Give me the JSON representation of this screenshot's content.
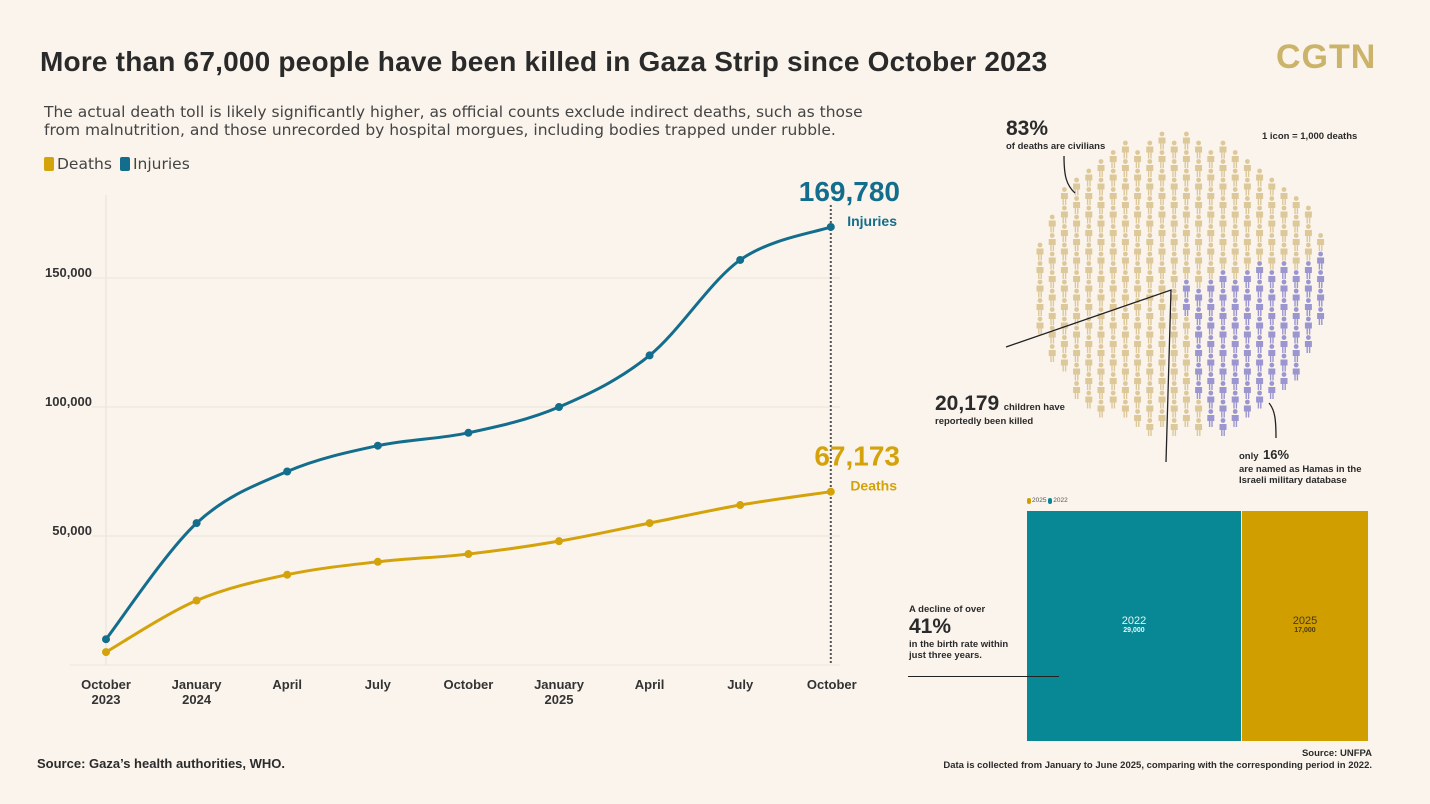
{
  "title": "More than 67,000 people have been killed in Gaza Strip since October 2023",
  "logo": "CGTN",
  "subtitle": "The actual death toll is likely significantly higher, as official counts exclude indirect deaths, such as those from malnutrition, and those unrecorded by hospital morgues, including bodies trapped under rubble.",
  "source": "Source: Gaza’s health authorities, WHO.",
  "colors": {
    "deaths": "#d4a20a",
    "injuries": "#136d8c",
    "civilians": "#ddc89a",
    "hamas": "#9b96d0",
    "teal": "#078894",
    "gold": "#d19e00"
  },
  "chart_data": [
    {
      "type": "line",
      "legend": [
        "Deaths",
        "Injuries"
      ],
      "categories": [
        "October 2023",
        "January 2024",
        "April",
        "July",
        "October",
        "January 2025",
        "April",
        "July",
        "October"
      ],
      "tick_labels": [
        [
          "October",
          "2023"
        ],
        [
          "January",
          "2024"
        ],
        [
          "April",
          ""
        ],
        [
          "July",
          ""
        ],
        [
          "October",
          ""
        ],
        [
          "January",
          "2025"
        ],
        [
          "April",
          ""
        ],
        [
          "July",
          ""
        ],
        [
          "October",
          ""
        ]
      ],
      "yticks": [
        {
          "v": 50000,
          "label": "50,000"
        },
        {
          "v": 100000,
          "label": "100,000"
        },
        {
          "v": 150000,
          "label": "150,000"
        }
      ],
      "ylim": [
        0,
        180000
      ],
      "series": [
        {
          "name": "Injuries",
          "values": [
            10000,
            55000,
            75000,
            85000,
            90000,
            100000,
            120000,
            157000,
            169780
          ],
          "end_label": "169,780"
        },
        {
          "name": "Deaths",
          "values": [
            5000,
            25000,
            35000,
            40000,
            43000,
            48000,
            55000,
            62000,
            67173
          ],
          "end_label": "67,173"
        }
      ]
    },
    {
      "type": "bar",
      "legend": [
        "2025",
        "2022"
      ],
      "categories": [
        "2022",
        "2025"
      ],
      "values": [
        29000,
        17000
      ],
      "value_labels": [
        "29,000",
        "17,000"
      ],
      "source": "Source: UNFPA",
      "note": "Data is collected from January to June 2025, comparing with the corresponding period in 2022."
    }
  ],
  "pictogram": {
    "key": "1 icon = 1,000 deaths",
    "civ_pct": "83%",
    "civ_text": "of deaths are civilians",
    "children_num": "20,179",
    "children_text1": "children have",
    "children_text2": "reportedly been killed",
    "hamas_pre": "only",
    "hamas_pct": "16%",
    "hamas_text1": "are named as Hamas in the",
    "hamas_text2": "Israeli military database"
  },
  "birth": {
    "pre": "A decline of over",
    "pct": "41%",
    "text1": "in the birth rate within",
    "text2": "just three years."
  }
}
